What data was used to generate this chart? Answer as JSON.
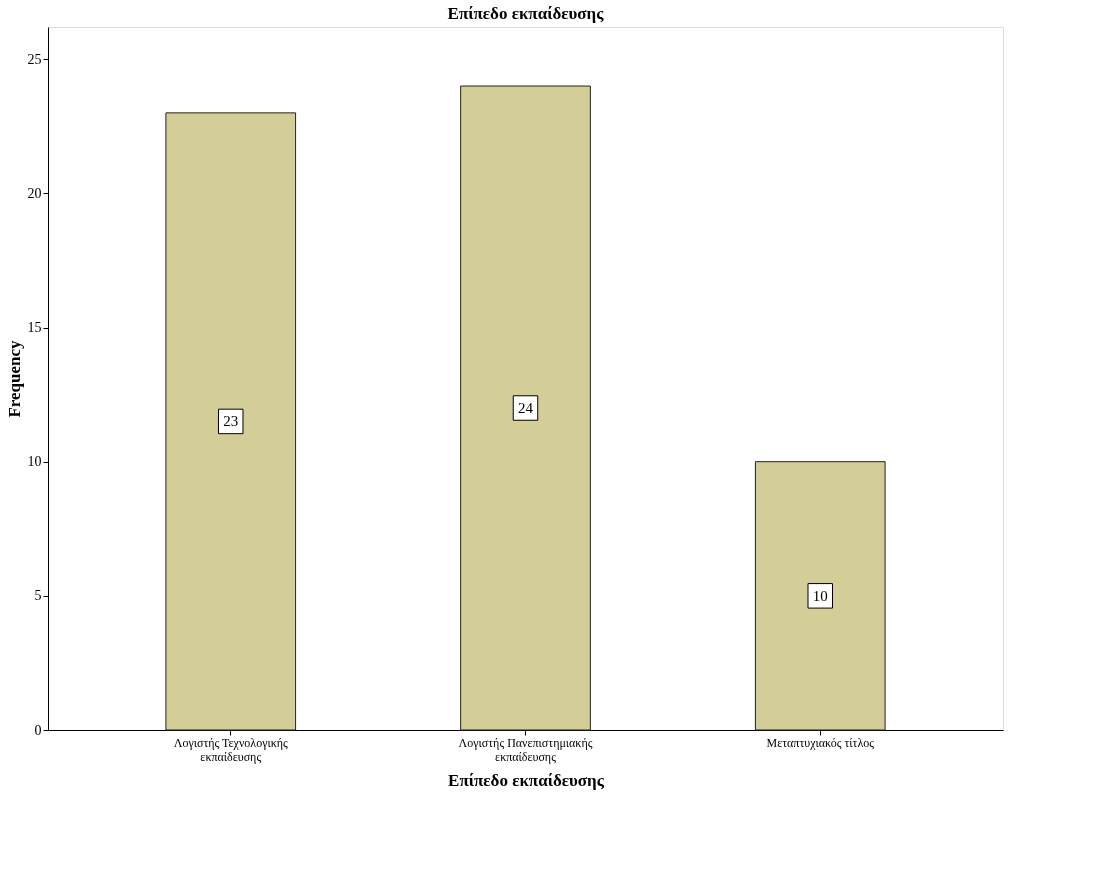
{
  "chart_data": {
    "type": "bar",
    "title": "Επίπεδο εκπαίδευσης",
    "xlabel": "Επίπεδο εκπαίδευσης",
    "ylabel": "Frequency",
    "categories": [
      "Λογιστής Τεχνολογικής\nεκπαίδευσης",
      "Λογιστής Πανεπιστημιακής\nεκπαίδευσης",
      "Μεταπτυχιακός τίτλος"
    ],
    "values": [
      23,
      24,
      10
    ],
    "color": "#d3ce97",
    "ylim": [
      0,
      26.2
    ],
    "yticks": [
      0,
      5,
      10,
      15,
      20,
      25
    ],
    "grid": false,
    "data_labels": true
  }
}
